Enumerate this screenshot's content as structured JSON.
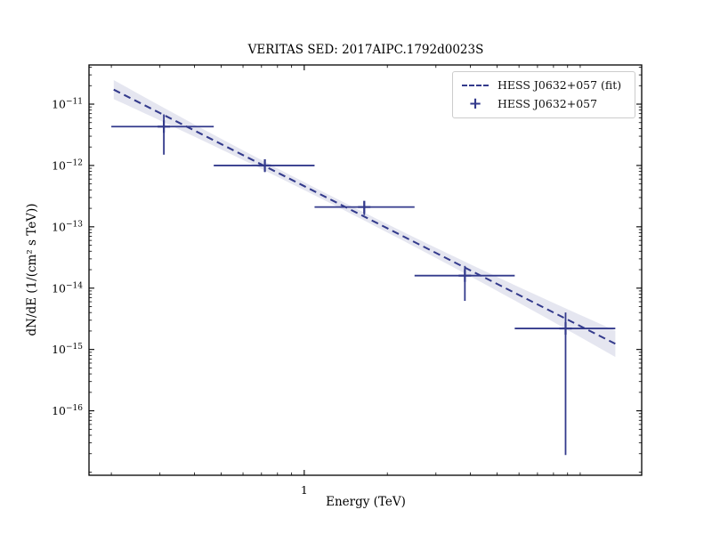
{
  "figure": {
    "title": "VERITAS SED: 2017AIPC.1792d0023S",
    "xlabel": "Energy (TeV)",
    "ylabel": "dN/dE (1/(cm² s TeV))",
    "colors": {
      "line": "#333a8c",
      "band": "rgba(51,58,140,0.13)",
      "frame": "#000000",
      "tick_text": "#000000",
      "legend_border": "#cccccc"
    },
    "legend": {
      "entries": [
        {
          "label": "HESS J0632+057 (fit)",
          "style": "dashed-line"
        },
        {
          "label": "HESS J0632+057",
          "style": "plus-marker"
        }
      ]
    }
  },
  "chart_data": {
    "type": "scatter",
    "title": "VERITAS SED: 2017AIPC.1792d0023S",
    "xlabel": "Energy (TeV)",
    "ylabel": "dN/dE (1/(cm² s TeV))",
    "xscale": "log",
    "yscale": "log",
    "xlim": [
      0.166,
      16.7
    ],
    "ylim": [
      8.9e-18,
      4.35e-11
    ],
    "grid": false,
    "legend_position": "upper right",
    "x_major_ticks": [
      1
    ],
    "x_major_tick_labels": [
      "1"
    ],
    "y_major_ticks": [
      1e-11,
      1e-12,
      1e-13,
      1e-14,
      1e-15,
      1e-16
    ],
    "series": [
      {
        "name": "HESS J0632+057 (fit)",
        "type": "line",
        "style": "dashed",
        "model": "power-law",
        "amplitude_at_1TeV": 4.6e-13,
        "spectral_index": -2.28,
        "x_range": [
          0.204,
          13.4
        ],
        "confidence_band_halfwidth_dex": {
          "a": 0.147,
          "b": -0.031,
          "c": 0.064
        }
      },
      {
        "name": "HESS J0632+057",
        "type": "errorbar",
        "marker": "+",
        "points": [
          {
            "x": 0.31,
            "x_low": 0.2,
            "x_high": 0.47,
            "y": 4.3e-12,
            "y_low": 1.5e-12,
            "y_high": 6.8e-12
          },
          {
            "x": 0.72,
            "x_low": 0.47,
            "x_high": 1.09,
            "y": 1e-12,
            "y_low": 7.8e-13,
            "y_high": 1.25e-12
          },
          {
            "x": 1.65,
            "x_low": 1.09,
            "x_high": 2.51,
            "y": 2.1e-13,
            "y_low": 1.55e-13,
            "y_high": 2.6e-13
          },
          {
            "x": 3.82,
            "x_low": 2.51,
            "x_high": 5.79,
            "y": 1.6e-14,
            "y_low": 6.2e-15,
            "y_high": 2.3e-14
          },
          {
            "x": 8.85,
            "x_low": 5.79,
            "x_high": 13.4,
            "y": 2.2e-15,
            "y_low": 1.9e-17,
            "y_high": 4e-15
          }
        ]
      }
    ]
  }
}
